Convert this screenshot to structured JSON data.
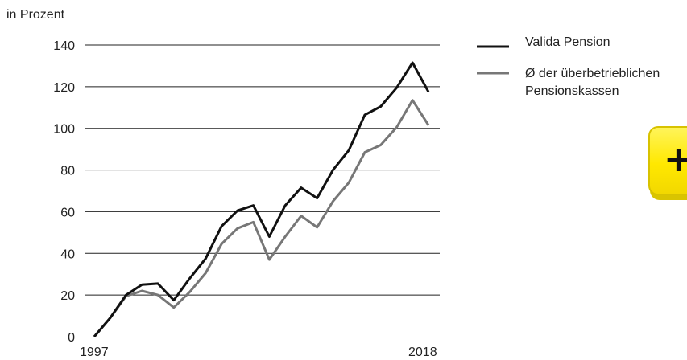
{
  "chart_data": {
    "type": "line",
    "ylabel": "in Prozent",
    "ylim": [
      0,
      140
    ],
    "yticks": [
      0,
      20,
      40,
      60,
      80,
      100,
      120,
      140
    ],
    "x_tick_labels": [
      "1997",
      "2018"
    ],
    "grid": true,
    "legend_position": "right",
    "series": [
      {
        "name": "Valida Pension",
        "color": "#111111",
        "values": [
          0,
          9,
          20,
          25,
          25.5,
          17.5,
          28,
          37.5,
          53,
          60.5,
          63,
          48,
          63,
          71.5,
          66.5,
          80,
          89.5,
          106.5,
          110.5,
          119.5,
          131.5,
          117.5
        ]
      },
      {
        "name": "Ø der überbetrieblichen Pensionskassen",
        "color": "#777777",
        "values": [
          0,
          9,
          19.5,
          22,
          20,
          14,
          21.5,
          30.5,
          44.5,
          52,
          55,
          37,
          48,
          58,
          52.5,
          65,
          74,
          88.5,
          92,
          100.5,
          113.5,
          101.5
        ]
      }
    ]
  },
  "badge": {
    "icon": "plus-icon",
    "glyph": "+",
    "color": "#ffe800"
  }
}
